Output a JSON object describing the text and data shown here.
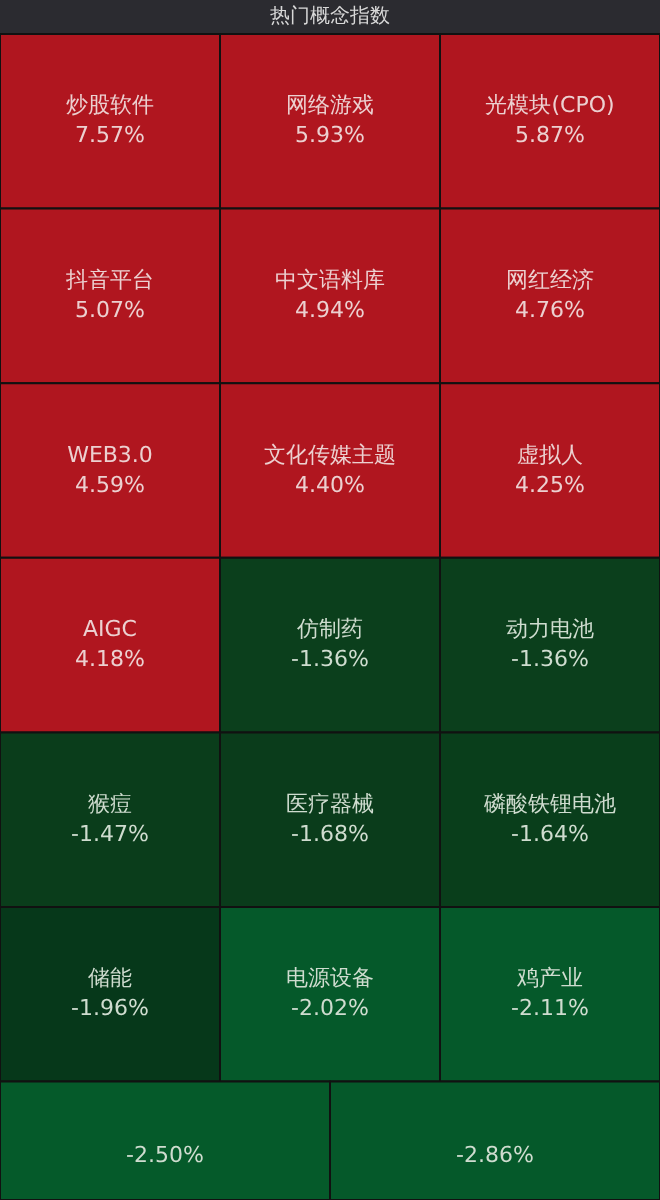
{
  "chart_data": {
    "type": "other",
    "title": "热门概念指数",
    "categories": [
      "炒股软件",
      "网络游戏",
      "光模块(CPO)",
      "抖音平台",
      "中文语料库",
      "网红经济",
      "WEB3.0",
      "文化传媒主题",
      "虚拟人",
      "AIGC",
      "仿制药",
      "动力电池",
      "猴痘",
      "医疗器械",
      "磷酸铁锂电池",
      "储能",
      "电源设备",
      "鸡产业",
      null,
      null
    ],
    "values": [
      7.57,
      5.93,
      5.87,
      5.07,
      4.94,
      4.76,
      4.59,
      4.4,
      4.25,
      4.18,
      -1.36,
      -1.36,
      -1.47,
      -1.68,
      -1.64,
      -1.96,
      -2.02,
      -2.11,
      -2.5,
      -2.86
    ],
    "value_labels": [
      "7.57%",
      "5.93%",
      "5.87%",
      "5.07%",
      "4.94%",
      "4.76%",
      "4.59%",
      "4.40%",
      "4.25%",
      "4.18%",
      "-1.36%",
      "-1.36%",
      "-1.47%",
      "-1.68%",
      "-1.64%",
      "-1.96%",
      "-2.02%",
      "-2.11%",
      "-2.50%",
      "-2.86%"
    ],
    "colors": [
      "#b0161f",
      "#b0161f",
      "#b0161f",
      "#b0161f",
      "#b0161f",
      "#b0161f",
      "#b0161f",
      "#b0161f",
      "#b0161f",
      "#b0161f",
      "#0b3f1c",
      "#0b3f1c",
      "#0a3d1b",
      "#0a3c1b",
      "#093e1b",
      "#06381a",
      "#05592a",
      "#05592a",
      "#055a2a",
      "#05592a"
    ]
  }
}
